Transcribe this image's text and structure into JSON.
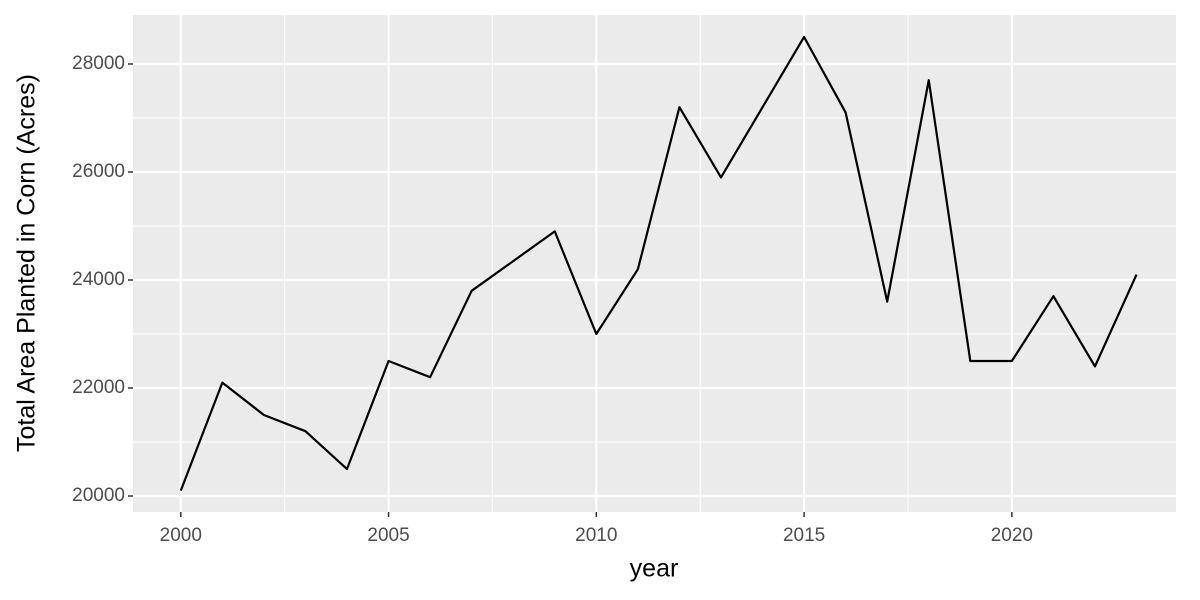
{
  "chart_data": {
    "type": "line",
    "x_label": "year",
    "y_label": "Total Area Planted in Corn (Acres)",
    "x": [
      2000,
      2001,
      2002,
      2003,
      2004,
      2005,
      2006,
      2007,
      2008,
      2009,
      2010,
      2011,
      2012,
      2013,
      2014,
      2015,
      2016,
      2017,
      2018,
      2019,
      2020,
      2021,
      2022,
      2023
    ],
    "values": [
      20100,
      22100,
      21500,
      21200,
      20500,
      22500,
      22200,
      23800,
      24350,
      24900,
      23000,
      24200,
      27200,
      25900,
      27200,
      28500,
      27100,
      23600,
      27700,
      22500,
      22500,
      23700,
      22400,
      24100
    ],
    "color": "#000000",
    "xlim": [
      1998.85,
      2023.95
    ],
    "xticks": [
      2000,
      2005,
      2010,
      2015,
      2020
    ],
    "ylim": [
      19704,
      28907
    ],
    "yticks": [
      20000,
      22000,
      24000,
      26000,
      28000
    ],
    "grid": true
  }
}
